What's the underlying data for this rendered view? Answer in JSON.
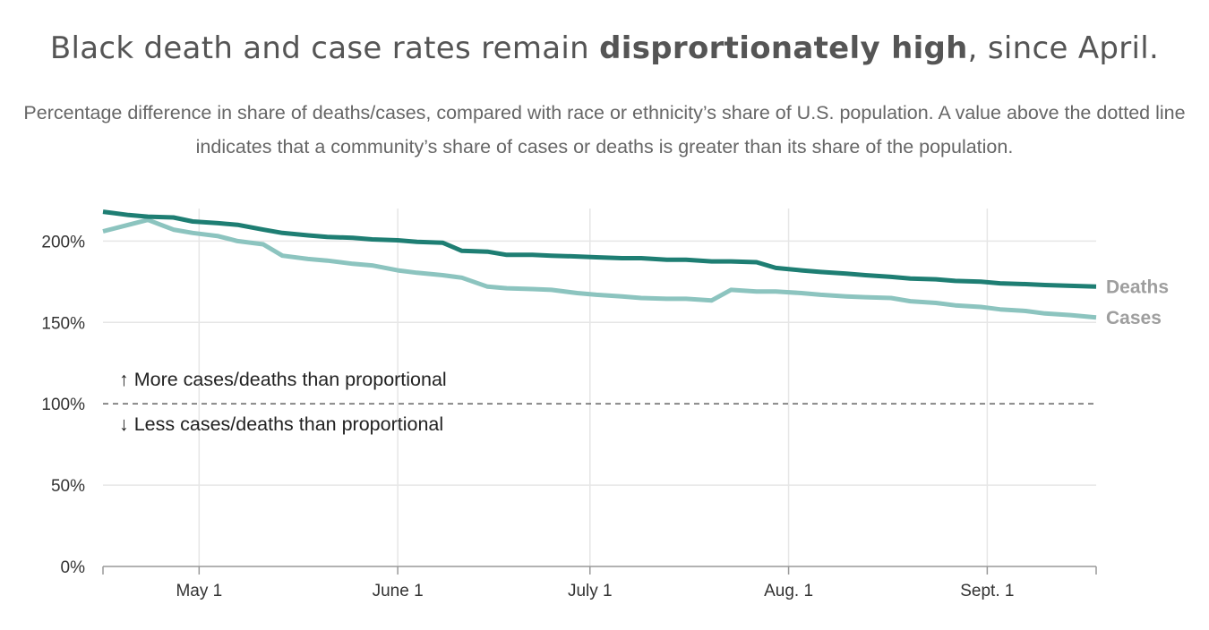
{
  "title": {
    "prefix": "Black death and case rates remain ",
    "emphasis": "disprortionately high",
    "suffix": ", since April."
  },
  "subtitle": "Percentage difference in share of deaths/cases, compared with race or ethnicity’s share of U.S. population. A value above the dotted line indicates that a community’s share of cases or deaths is greater than its share of the population.",
  "colors": {
    "deaths": "#1e7e73",
    "cases": "#8cc4bf",
    "series_label": "#9e9e9e",
    "grid": "#e6e6e6",
    "reference_line": "#555555",
    "axis": "#999999"
  },
  "chart_data": {
    "type": "line",
    "title": "Black death and case rates remain disprortionately high, since April.",
    "xlabel": "",
    "ylabel": "",
    "x_range": [
      "2020-04-16",
      "2020-09-18"
    ],
    "ylim": [
      0,
      220
    ],
    "y_ticks": [
      0,
      50,
      100,
      150,
      200
    ],
    "y_tick_labels": [
      "0%",
      "50%",
      "100%",
      "150%",
      "200%"
    ],
    "x_ticks": [
      "2020-05-01",
      "2020-06-01",
      "2020-07-01",
      "2020-08-01",
      "2020-09-01"
    ],
    "x_tick_labels": [
      "May 1",
      "June 1",
      "July 1",
      "Aug. 1",
      "Sept. 1"
    ],
    "grid": true,
    "reference_line": {
      "y": 100,
      "style": "dashed",
      "above_label": "↑ More cases/deaths than proportional",
      "below_label": "↓ Less cases/deaths than proportional"
    },
    "series": [
      {
        "name": "Deaths",
        "color": "#1e7e73",
        "points": [
          [
            "2020-04-16",
            218
          ],
          [
            "2020-04-20",
            216
          ],
          [
            "2020-04-23",
            215
          ],
          [
            "2020-04-27",
            214.5
          ],
          [
            "2020-04-30",
            212
          ],
          [
            "2020-05-04",
            211
          ],
          [
            "2020-05-07",
            210
          ],
          [
            "2020-05-11",
            207
          ],
          [
            "2020-05-14",
            205
          ],
          [
            "2020-05-18",
            203.5
          ],
          [
            "2020-05-21",
            202.5
          ],
          [
            "2020-05-25",
            202
          ],
          [
            "2020-05-28",
            201
          ],
          [
            "2020-06-01",
            200.5
          ],
          [
            "2020-06-04",
            199.5
          ],
          [
            "2020-06-08",
            199
          ],
          [
            "2020-06-11",
            194
          ],
          [
            "2020-06-15",
            193.5
          ],
          [
            "2020-06-18",
            191.5
          ],
          [
            "2020-06-22",
            191.5
          ],
          [
            "2020-06-25",
            191
          ],
          [
            "2020-06-29",
            190.5
          ],
          [
            "2020-07-02",
            190
          ],
          [
            "2020-07-06",
            189.5
          ],
          [
            "2020-07-09",
            189.5
          ],
          [
            "2020-07-13",
            188.5
          ],
          [
            "2020-07-16",
            188.5
          ],
          [
            "2020-07-20",
            187.5
          ],
          [
            "2020-07-23",
            187.5
          ],
          [
            "2020-07-27",
            187
          ],
          [
            "2020-07-30",
            183.5
          ],
          [
            "2020-08-03",
            182
          ],
          [
            "2020-08-06",
            181
          ],
          [
            "2020-08-10",
            180
          ],
          [
            "2020-08-13",
            179
          ],
          [
            "2020-08-17",
            178
          ],
          [
            "2020-08-20",
            177
          ],
          [
            "2020-08-24",
            176.5
          ],
          [
            "2020-08-27",
            175.5
          ],
          [
            "2020-08-31",
            175
          ],
          [
            "2020-09-03",
            174
          ],
          [
            "2020-09-07",
            173.5
          ],
          [
            "2020-09-10",
            173
          ],
          [
            "2020-09-14",
            172.5
          ],
          [
            "2020-09-18",
            172
          ]
        ]
      },
      {
        "name": "Cases",
        "color": "#8cc4bf",
        "points": [
          [
            "2020-04-16",
            206
          ],
          [
            "2020-04-20",
            210
          ],
          [
            "2020-04-23",
            213
          ],
          [
            "2020-04-27",
            207
          ],
          [
            "2020-04-30",
            205
          ],
          [
            "2020-05-04",
            203
          ],
          [
            "2020-05-07",
            200
          ],
          [
            "2020-05-11",
            198
          ],
          [
            "2020-05-14",
            191
          ],
          [
            "2020-05-18",
            189
          ],
          [
            "2020-05-21",
            188
          ],
          [
            "2020-05-25",
            186
          ],
          [
            "2020-05-28",
            185
          ],
          [
            "2020-06-01",
            182
          ],
          [
            "2020-06-04",
            180.5
          ],
          [
            "2020-06-08",
            179
          ],
          [
            "2020-06-11",
            177.5
          ],
          [
            "2020-06-15",
            172
          ],
          [
            "2020-06-18",
            171
          ],
          [
            "2020-06-22",
            170.5
          ],
          [
            "2020-06-25",
            170
          ],
          [
            "2020-06-29",
            168
          ],
          [
            "2020-07-02",
            167
          ],
          [
            "2020-07-06",
            166
          ],
          [
            "2020-07-09",
            165
          ],
          [
            "2020-07-13",
            164.5
          ],
          [
            "2020-07-16",
            164.5
          ],
          [
            "2020-07-20",
            163.5
          ],
          [
            "2020-07-23",
            170
          ],
          [
            "2020-07-27",
            169
          ],
          [
            "2020-07-30",
            169
          ],
          [
            "2020-08-03",
            168
          ],
          [
            "2020-08-06",
            167
          ],
          [
            "2020-08-10",
            166
          ],
          [
            "2020-08-13",
            165.5
          ],
          [
            "2020-08-17",
            165
          ],
          [
            "2020-08-20",
            163
          ],
          [
            "2020-08-24",
            162
          ],
          [
            "2020-08-27",
            160.5
          ],
          [
            "2020-08-31",
            159.5
          ],
          [
            "2020-09-03",
            158
          ],
          [
            "2020-09-07",
            157
          ],
          [
            "2020-09-10",
            155.5
          ],
          [
            "2020-09-14",
            154.5
          ],
          [
            "2020-09-18",
            153
          ]
        ]
      }
    ]
  }
}
